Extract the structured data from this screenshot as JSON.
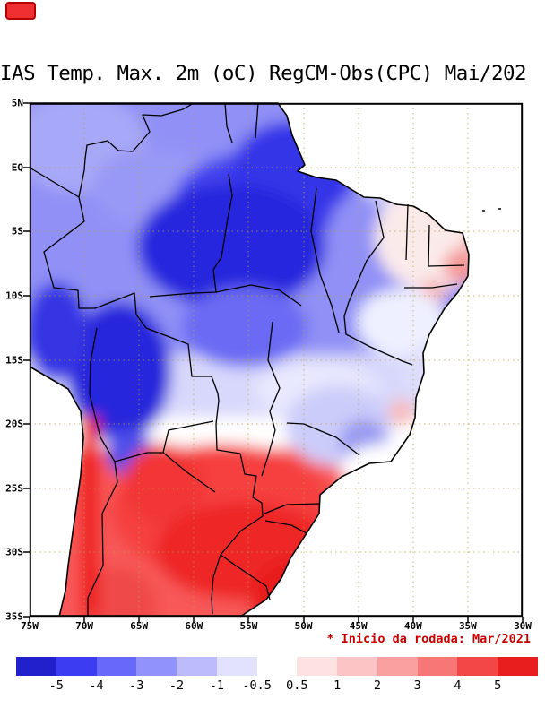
{
  "window": {
    "title": "IAS Temp. Max. 2m (oC) RegCM-Obs(CPC) Mai/202"
  },
  "map": {
    "lat_labels": [
      "5N",
      "EQ",
      "5S",
      "10S",
      "15S",
      "20S",
      "25S",
      "30S",
      "35S"
    ],
    "lon_labels": [
      "75W",
      "70W",
      "65W",
      "60W",
      "55W",
      "50W",
      "45W",
      "40W",
      "35W",
      "30W"
    ]
  },
  "footer": {
    "note": "* Inicio da rodada: Mar/2021",
    "note_color": "#cc0000"
  },
  "colorbar": {
    "tick_labels": [
      "-5",
      "-4",
      "-3",
      "-2",
      "-1",
      "-0.5",
      "0.5",
      "1",
      "2",
      "3",
      "4",
      "5"
    ],
    "colors": [
      "#2020cc",
      "#3c3cf2",
      "#6868fa",
      "#9292fc",
      "#bcbcfd",
      "#e2e2fe",
      "#ffffff",
      "#fde2e2",
      "#fcc4c4",
      "#faa0a0",
      "#f77676",
      "#f34646",
      "#e81e1e"
    ]
  },
  "chart_data": {
    "type": "heatmap",
    "title": "IAS Temp. Max. 2m (oC) RegCM-Obs(CPC) Mai/202",
    "x_tick_labels": [
      "75W",
      "70W",
      "65W",
      "60W",
      "55W",
      "50W",
      "45W",
      "40W",
      "35W",
      "30W"
    ],
    "y_tick_labels": [
      "5N",
      "EQ",
      "5S",
      "10S",
      "15S",
      "20S",
      "25S",
      "30S",
      "35S"
    ],
    "colorbar_levels": [
      -5,
      -4,
      -3,
      -2,
      -1,
      -0.5,
      0.5,
      1,
      2,
      3,
      4,
      5
    ],
    "units": "oC",
    "annotation": "* Inicio da rodada: Mar/2021",
    "legend_position": "bottom",
    "pattern_summary": [
      {
        "region": "northern and central Amazon (5N-12S, 45-65W)",
        "bias": "-5 to -2"
      },
      {
        "region": "western blob near Andes (11S-22S, 64-73W)",
        "bias": "-5 to -3"
      },
      {
        "region": "northeast Brazil coast (3S-10S, 35-40W)",
        "bias": "0.5 to 2"
      },
      {
        "region": "transition band (15S-21S)",
        "bias": "-0.5 to 0.5"
      },
      {
        "region": "southern Brazil / Paraguay / N Argentina (21S-35S)",
        "bias": "2 to 5"
      },
      {
        "region": "Andes-Chile strip (20S-35S near 69W)",
        "bias": "4 to 5+"
      }
    ]
  }
}
